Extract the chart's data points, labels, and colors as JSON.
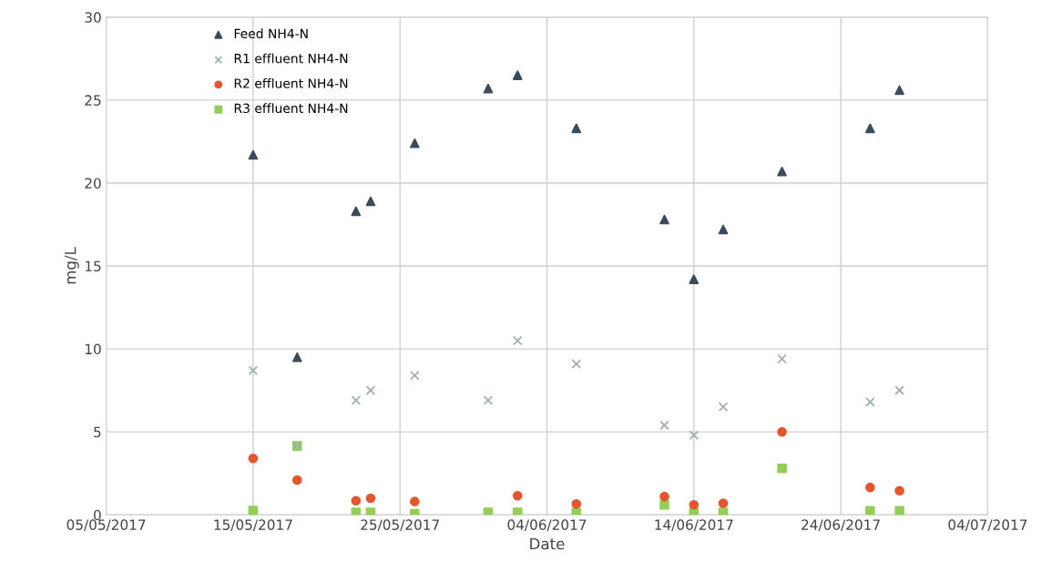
{
  "chart_data": {
    "type": "scatter",
    "xlabel": "Date",
    "ylabel": "mg/L",
    "x": [
      "2017-05-15",
      "2017-05-18",
      "2017-05-22",
      "2017-05-23",
      "2017-05-26",
      "2017-05-31",
      "2017-06-02",
      "2017-06-06",
      "2017-06-12",
      "2017-06-14",
      "2017-06-16",
      "2017-06-20",
      "2017-06-26",
      "2017-06-28"
    ],
    "series": [
      {
        "name": "Feed NH4-N",
        "color": "#3b4b5c",
        "marker": "triangle",
        "values": [
          21.7,
          9.5,
          18.3,
          18.9,
          22.4,
          25.7,
          26.5,
          23.3,
          17.8,
          14.2,
          17.2,
          20.7,
          23.3,
          25.6
        ]
      },
      {
        "name": "R1 effluent NH4-N",
        "color": "#9db1b3",
        "marker": "cross",
        "values": [
          8.7,
          4.2,
          6.9,
          7.5,
          8.4,
          6.9,
          10.5,
          9.1,
          5.4,
          4.8,
          6.5,
          9.4,
          6.8,
          7.5
        ]
      },
      {
        "name": "R2 effluent NH4-N",
        "color": "#e8552b",
        "marker": "circle",
        "values": [
          3.4,
          2.1,
          0.85,
          1.0,
          0.8,
          null,
          1.15,
          0.65,
          1.1,
          0.6,
          0.7,
          5.0,
          1.65,
          1.45
        ]
      },
      {
        "name": "R3 effluent NH4-N",
        "color": "#92cf52",
        "marker": "square",
        "values": [
          0.26,
          4.15,
          0.15,
          0.15,
          0.06,
          0.15,
          0.15,
          0.15,
          0.6,
          0.15,
          0.15,
          2.8,
          0.24,
          0.24
        ]
      }
    ],
    "xlim": [
      "2017-05-05",
      "2017-07-04"
    ],
    "xticks": [
      {
        "value": "2017-05-05",
        "label": "05/05/2017"
      },
      {
        "value": "2017-05-15",
        "label": "15/05/2017"
      },
      {
        "value": "2017-05-25",
        "label": "25/05/2017"
      },
      {
        "value": "2017-06-04",
        "label": "04/06/2017"
      },
      {
        "value": "2017-06-14",
        "label": "14/06/2017"
      },
      {
        "value": "2017-06-24",
        "label": "24/06/2017"
      },
      {
        "value": "2017-07-04",
        "label": "04/07/2017"
      }
    ],
    "ylim": [
      0,
      30
    ],
    "yticks": [
      0,
      5,
      10,
      15,
      20,
      25,
      30
    ],
    "grid": true,
    "legend": "top left"
  }
}
